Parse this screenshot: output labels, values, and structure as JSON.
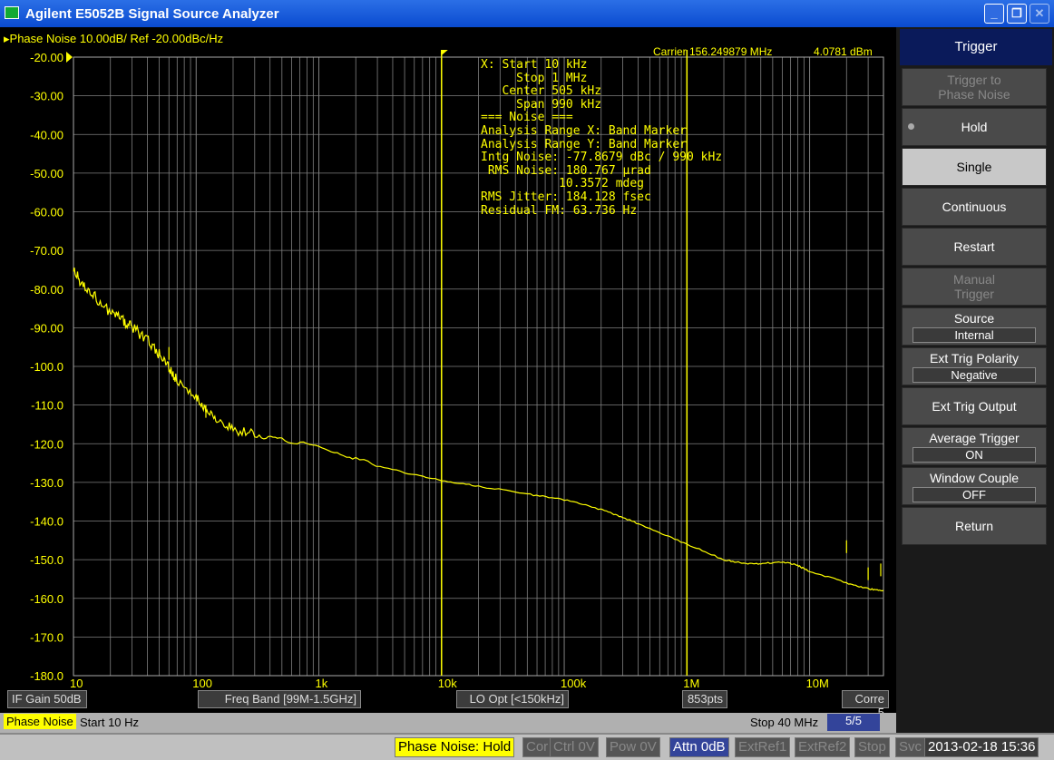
{
  "window": {
    "title": "Agilent E5052B Signal Source Analyzer",
    "minimize": "_",
    "restore": "❐",
    "close": "✕"
  },
  "trace_header": "Phase Noise 10.00dB/ Ref -20.00dBc/Hz",
  "carrier": {
    "label": "Carrier 156.249879 MHz",
    "power": "4.0781 dBm"
  },
  "analysis_text": [
    "X: Start 10 kHz",
    "     Stop 1 MHz",
    "   Center 505 kHz",
    "     Span 990 kHz",
    "=== Noise ===",
    "Analysis Range X: Band Marker",
    "Analysis Range Y: Band Marker",
    "Intg Noise: -77.8679 dBc / 990 kHz",
    " RMS Noise: 180.767 µrad",
    "           10.3572 mdeg",
    "RMS Jitter: 184.128 fsec",
    "Residual FM: 63.736 Hz"
  ],
  "colors": {
    "trace": "#ffff00",
    "grid": "#808080",
    "background": "#000000"
  },
  "chart_data": {
    "type": "line",
    "x_scale": "log",
    "xlim": [
      10,
      40000000
    ],
    "ylim": [
      -180,
      -20
    ],
    "grid": true,
    "ytick_labels": [
      "-20.00",
      "-30.00",
      "-40.00",
      "-50.00",
      "-60.00",
      "-70.00",
      "-80.00",
      "-90.00",
      "-100.0",
      "-110.0",
      "-120.0",
      "-130.0",
      "-140.0",
      "-150.0",
      "-160.0",
      "-170.0",
      "-180.0"
    ],
    "xtick_labels": [
      {
        "v": 10,
        "t": "10"
      },
      {
        "v": 100,
        "t": "100"
      },
      {
        "v": 1000,
        "t": "1k"
      },
      {
        "v": 10000,
        "t": "10k"
      },
      {
        "v": 100000,
        "t": "100k"
      },
      {
        "v": 1000000,
        "t": "1M"
      },
      {
        "v": 10000000,
        "t": "10M"
      }
    ],
    "band_markers": [
      10000,
      1000000
    ],
    "series": [
      {
        "x": [
          10,
          12,
          15,
          20,
          25,
          30,
          40,
          50,
          60,
          70,
          100,
          120,
          150,
          200,
          300,
          500,
          1000,
          2000,
          5000,
          10000,
          20000,
          50000,
          100000,
          200000,
          300000,
          500000,
          1000000,
          2000000,
          3000000,
          4000000,
          6000000,
          8000000,
          10000000,
          20000000,
          30000000,
          40000000
        ],
        "y": [
          -75,
          -79,
          -82,
          -86,
          -88,
          -90,
          -93,
          -97,
          -100,
          -104,
          -108,
          -111,
          -114,
          -116,
          -118,
          -119,
          -120.5,
          -124,
          -127.5,
          -129.5,
          -131,
          -133,
          -134.5,
          -137,
          -139,
          -142,
          -146,
          -150,
          -151,
          -151,
          -150.5,
          -151.5,
          -153,
          -156,
          -157.5,
          -158
        ]
      }
    ],
    "spurs": [
      {
        "x": 60,
        "y": -95
      },
      {
        "x": 120,
        "y": -110
      },
      {
        "x": 20000000,
        "y": -145
      },
      {
        "x": 30000000,
        "y": -152
      },
      {
        "x": 38000000,
        "y": -151
      }
    ]
  },
  "info_bar": [
    "IF Gain 50dB",
    "Freq Band [99M-1.5GHz]",
    "LO Opt [<150kHz]",
    "853pts",
    "Corre 5"
  ],
  "status": {
    "meas": "Phase Noise",
    "start": "Start 10 Hz",
    "stop": "Stop 40 MHz",
    "count": "5/5"
  },
  "softkeys": {
    "header": "Trigger",
    "items": [
      {
        "label": "Trigger to\nPhase Noise",
        "state": "disabled"
      },
      {
        "label": "Hold",
        "state": "active"
      },
      {
        "label": "Single",
        "state": "selected"
      },
      {
        "label": "Continuous",
        "state": "normal"
      },
      {
        "label": "Restart",
        "state": "normal"
      },
      {
        "label": "Manual\nTrigger",
        "state": "disabled"
      },
      {
        "label": "Source",
        "value": "Internal"
      },
      {
        "label": "Ext Trig Polarity",
        "value": "Negative"
      },
      {
        "label": "Ext Trig Output",
        "state": "normal"
      },
      {
        "label": "Average Trigger",
        "value": "ON"
      },
      {
        "label": "Window Couple",
        "value": "OFF"
      },
      {
        "label": "Return",
        "state": "normal"
      }
    ]
  },
  "bottom": [
    "Phase Noise: Hold",
    "Cor",
    "Ctrl  0V",
    "Pow  0V",
    "Attn 0dB",
    "ExtRef1",
    "ExtRef2",
    "Stop",
    "Svc",
    "2013-02-18 15:36"
  ]
}
